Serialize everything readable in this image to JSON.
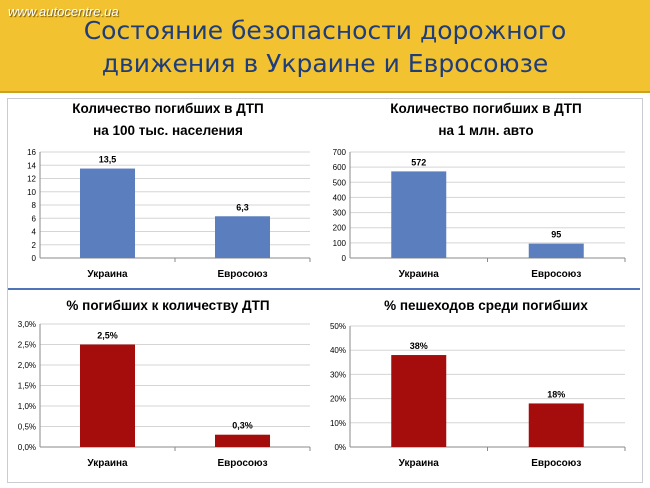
{
  "watermark": "www.autocentre.ua",
  "title_line1": "Состояние безопасности дорожного",
  "title_line2": "движения в Украине и Евросоюзе",
  "chart_data": [
    {
      "type": "bar",
      "title": [
        "Количество погибших в ДТП",
        "на 100 тыс. населения"
      ],
      "categories": [
        "Украина",
        "Евросоюз"
      ],
      "values": [
        13.5,
        6.3
      ],
      "value_labels": [
        "13,5",
        "6,3"
      ],
      "ylim": [
        0,
        16
      ],
      "yticks": [
        0,
        2,
        4,
        6,
        8,
        10,
        12,
        14,
        16
      ],
      "ytick_labels": [
        "0",
        "2",
        "4",
        "6",
        "8",
        "10",
        "12",
        "14",
        "16"
      ],
      "color": "#5b7fbe",
      "grid": true,
      "xlabel": "",
      "ylabel": ""
    },
    {
      "type": "bar",
      "title": [
        "Количество погибших в ДТП",
        "на 1 млн. авто"
      ],
      "categories": [
        "Украина",
        "Евросоюз"
      ],
      "values": [
        572,
        95
      ],
      "value_labels": [
        "572",
        "95"
      ],
      "ylim": [
        0,
        700
      ],
      "yticks": [
        0,
        100,
        200,
        300,
        400,
        500,
        600,
        700
      ],
      "ytick_labels": [
        "0",
        "100",
        "200",
        "300",
        "400",
        "500",
        "600",
        "700"
      ],
      "color": "#5b7fbe",
      "grid": true,
      "xlabel": "",
      "ylabel": ""
    },
    {
      "type": "bar",
      "title": [
        "% погибших к количеству ДТП"
      ],
      "categories": [
        "Украина",
        "Евросоюз"
      ],
      "values": [
        2.5,
        0.3
      ],
      "value_labels": [
        "2,5%",
        "0,3%"
      ],
      "ylim": [
        0,
        3.0
      ],
      "yticks": [
        0,
        0.5,
        1.0,
        1.5,
        2.0,
        2.5,
        3.0
      ],
      "ytick_labels": [
        "0,0%",
        "0,5%",
        "1,0%",
        "1,5%",
        "2,0%",
        "2,5%",
        "3,0%"
      ],
      "color": "#a50d0d",
      "grid": true,
      "xlabel": "",
      "ylabel": ""
    },
    {
      "type": "bar",
      "title": [
        "% пешеходов среди погибших"
      ],
      "categories": [
        "Украина",
        "Евросоюз"
      ],
      "values": [
        38,
        18
      ],
      "value_labels": [
        "38%",
        "18%"
      ],
      "ylim": [
        0,
        50
      ],
      "yticks": [
        0,
        10,
        20,
        30,
        40,
        50
      ],
      "ytick_labels": [
        "0%",
        "10%",
        "20%",
        "30%",
        "40%",
        "50%"
      ],
      "color": "#a50d0d",
      "grid": true,
      "xlabel": "",
      "ylabel": ""
    }
  ]
}
